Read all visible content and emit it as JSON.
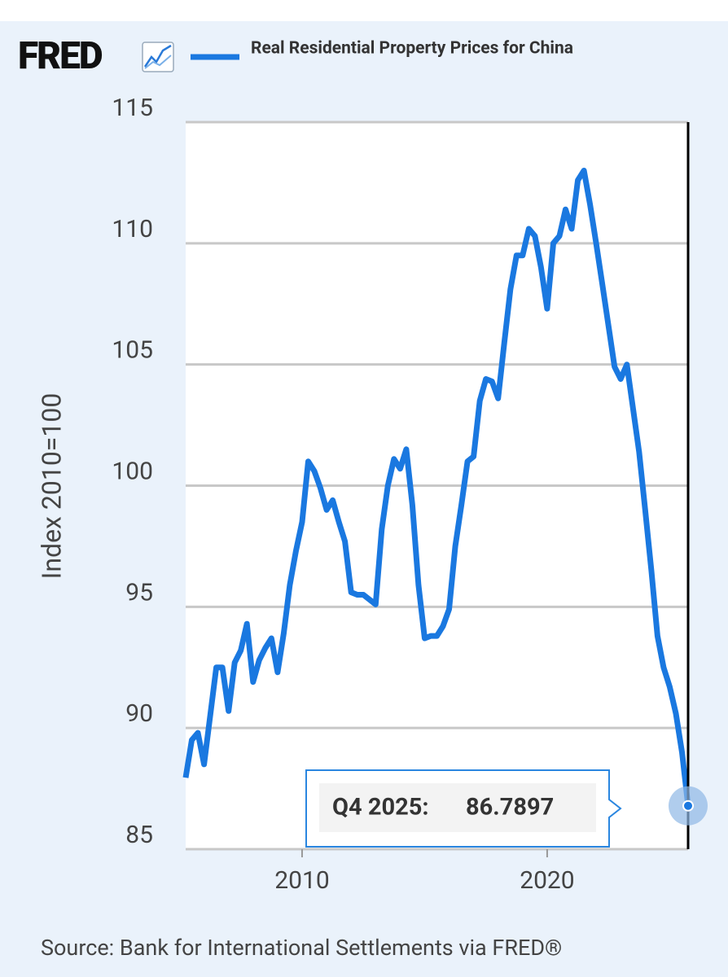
{
  "header": {
    "logo": "FRED"
  },
  "chart_data": {
    "type": "line",
    "y_label": "Index 2010=100",
    "source": "Source: Bank for International Settlements via FRED®",
    "annotation": "Q4 2025:",
    "x": [
      2005.25,
      2005.5,
      2005.75,
      2006,
      2006.25,
      2006.5,
      2006.75,
      2007,
      2007.25,
      2007.5,
      2007.75,
      2008,
      2008.25,
      2008.5,
      2008.75,
      2009,
      2009.25,
      2009.5,
      2009.75,
      2010,
      2010.25,
      2010.5,
      2010.75,
      2011,
      2011.25,
      2011.5,
      2011.75,
      2012,
      2012.25,
      2012.5,
      2012.75,
      2013,
      2013.25,
      2013.5,
      2013.75,
      2014,
      2014.25,
      2014.5,
      2014.75,
      2015,
      2015.25,
      2015.5,
      2015.75,
      2016,
      2016.25,
      2016.5,
      2016.75,
      2017,
      2017.25,
      2017.5,
      2017.75,
      2018,
      2018.25,
      2018.5,
      2018.75,
      2019,
      2019.25,
      2019.5,
      2019.75,
      2020,
      2020.25,
      2020.5,
      2020.75,
      2021,
      2021.25,
      2021.5,
      2021.75,
      2022,
      2022.25,
      2022.5,
      2022.75,
      2023,
      2023.25,
      2023.5,
      2023.75,
      2024,
      2024.25,
      2024.5,
      2024.75,
      2025,
      2025.25,
      2025.5,
      2025.75
    ],
    "series": [
      {
        "name": "Real Residential Property Prices for China",
        "color": "#1a78e0",
        "values": [
          87.95,
          89.5,
          89.8,
          88.5,
          90.5,
          92.5,
          92.5,
          90.7,
          92.7,
          93.2,
          94.3,
          91.9,
          92.8,
          93.3,
          93.7,
          92.3,
          93.9,
          95.9,
          97.3,
          98.5,
          101.0,
          100.6,
          99.9,
          99.0,
          99.4,
          98.5,
          97.7,
          95.6,
          95.5,
          95.5,
          95.3,
          95.1,
          98.2,
          100.0,
          101.1,
          100.7,
          101.5,
          99.2,
          95.9,
          93.7,
          93.8,
          93.8,
          94.2,
          94.9,
          97.5,
          99.2,
          101.0,
          101.2,
          103.5,
          104.4,
          104.3,
          103.6,
          105.9,
          108.1,
          109.5,
          109.5,
          110.6,
          110.3,
          109.0,
          107.3,
          110.0,
          110.3,
          111.4,
          110.6,
          112.6,
          113.0,
          111.6,
          110.0,
          108.3,
          106.6,
          104.9,
          104.4,
          105.0,
          103.2,
          101.4,
          99.0,
          96.5,
          93.8,
          92.5,
          91.7,
          90.6,
          89.0,
          86.7897
        ]
      }
    ],
    "xlim": [
      2005.25,
      2025.75
    ],
    "xticks": [
      2010,
      2020
    ],
    "ylim": [
      85,
      115
    ],
    "yticks": [
      85,
      90,
      95,
      100,
      105,
      110,
      115
    ],
    "grid": true
  }
}
